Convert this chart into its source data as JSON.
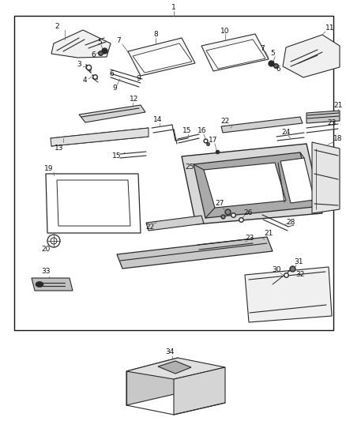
{
  "bg_color": "#ffffff",
  "border_color": "#1a1a1a",
  "text_color": "#111111",
  "fig_width": 4.38,
  "fig_height": 5.33
}
